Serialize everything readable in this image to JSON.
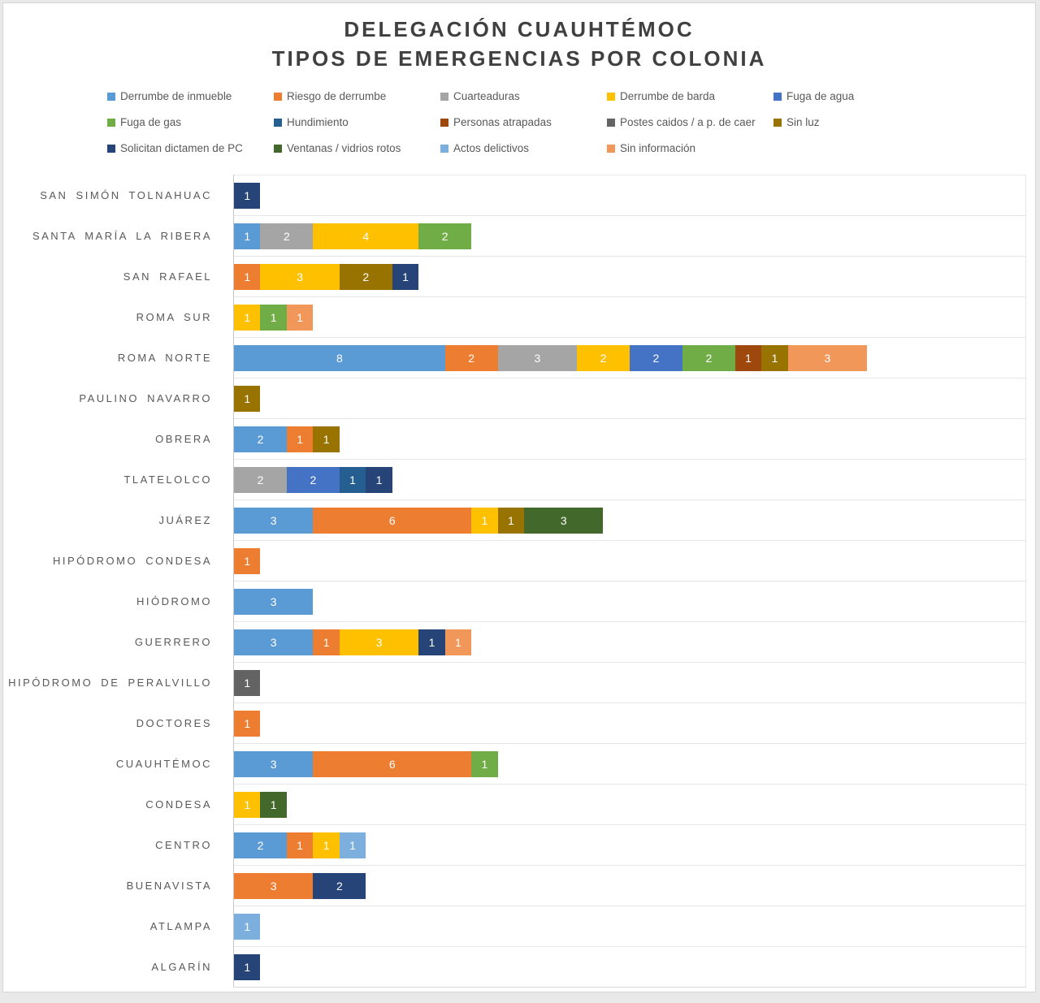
{
  "title": {
    "line1": "DELEGACIÓN CUAUHTÉMOC",
    "line2": "TIPOS DE EMERGENCIAS POR COLONIA"
  },
  "chart_data": {
    "type": "bar",
    "orientation": "horizontal",
    "stacked": true,
    "title": "DELEGACIÓN CUAUHTÉMOC — TIPOS DE EMERGENCIAS POR COLONIA",
    "legend_position": "top",
    "grid": "category-separators-only",
    "x_axis": {
      "min": 0,
      "max": 30,
      "tick_labels_visible": false
    },
    "value_labels": "inside-center-white",
    "series": [
      {
        "name": "Derrumbe de inmueble",
        "color": "#5B9BD5"
      },
      {
        "name": "Riesgo de derrumbe",
        "color": "#ED7D31"
      },
      {
        "name": "Cuarteaduras",
        "color": "#A5A5A5"
      },
      {
        "name": "Derrumbe de barda",
        "color": "#FFC000"
      },
      {
        "name": "Fuga de agua",
        "color": "#4472C4"
      },
      {
        "name": "Fuga de gas",
        "color": "#70AD47"
      },
      {
        "name": "Hundimiento",
        "color": "#255E91"
      },
      {
        "name": "Personas atrapadas",
        "color": "#9E480E"
      },
      {
        "name": "Postes caidos / a p. de caer",
        "color": "#636363"
      },
      {
        "name": "Sin luz",
        "color": "#997300"
      },
      {
        "name": "Solicitan dictamen de PC",
        "color": "#264478"
      },
      {
        "name": "Ventanas / vidrios rotos",
        "color": "#43682B"
      },
      {
        "name": "Actos delictivos",
        "color": "#7CAFDD"
      },
      {
        "name": "Sin información",
        "color": "#F1975A"
      }
    ],
    "categories": [
      "SAN SIMÓN TOLNAHUAC",
      "SANTA MARÍA LA RIBERA",
      "SAN RAFAEL",
      "ROMA SUR",
      "ROMA NORTE",
      "PAULINO NAVARRO",
      "OBRERA",
      "TLATELOLCO",
      "JUÁREZ",
      "HIPÓDROMO CONDESA",
      "HIÓDROMO",
      "GUERRERO",
      "EX HIPÓDROMO DE PERALVILLO",
      "DOCTORES",
      "CUAUHTÉMOC",
      "CONDESA",
      "CENTRO",
      "BUENAVISTA",
      "ATLAMPA",
      "ALGARÍN"
    ],
    "rows": [
      {
        "category": "SAN SIMÓN TOLNAHUAC",
        "segments": [
          {
            "series": "Solicitan dictamen de PC",
            "value": 1
          }
        ]
      },
      {
        "category": "SANTA MARÍA LA RIBERA",
        "segments": [
          {
            "series": "Derrumbe de inmueble",
            "value": 1
          },
          {
            "series": "Cuarteaduras",
            "value": 2
          },
          {
            "series": "Derrumbe de barda",
            "value": 4
          },
          {
            "series": "Fuga de gas",
            "value": 2
          }
        ]
      },
      {
        "category": "SAN RAFAEL",
        "segments": [
          {
            "series": "Riesgo de derrumbe",
            "value": 1
          },
          {
            "series": "Derrumbe de barda",
            "value": 3
          },
          {
            "series": "Sin luz",
            "value": 2
          },
          {
            "series": "Solicitan dictamen de PC",
            "value": 1
          }
        ]
      },
      {
        "category": "ROMA SUR",
        "segments": [
          {
            "series": "Derrumbe de barda",
            "value": 1
          },
          {
            "series": "Fuga de gas",
            "value": 1
          },
          {
            "series": "Sin información",
            "value": 1
          }
        ]
      },
      {
        "category": "ROMA NORTE",
        "segments": [
          {
            "series": "Derrumbe de inmueble",
            "value": 8
          },
          {
            "series": "Riesgo de derrumbe",
            "value": 2
          },
          {
            "series": "Cuarteaduras",
            "value": 3
          },
          {
            "series": "Derrumbe de barda",
            "value": 2
          },
          {
            "series": "Fuga de agua",
            "value": 2
          },
          {
            "series": "Fuga de gas",
            "value": 2
          },
          {
            "series": "Personas atrapadas",
            "value": 1
          },
          {
            "series": "Sin luz",
            "value": 1
          },
          {
            "series": "Sin información",
            "value": 3
          }
        ]
      },
      {
        "category": "PAULINO NAVARRO",
        "segments": [
          {
            "series": "Sin luz",
            "value": 1
          }
        ]
      },
      {
        "category": "OBRERA",
        "segments": [
          {
            "series": "Derrumbe de inmueble",
            "value": 2
          },
          {
            "series": "Riesgo de derrumbe",
            "value": 1
          },
          {
            "series": "Sin luz",
            "value": 1
          }
        ]
      },
      {
        "category": "TLATELOLCO",
        "segments": [
          {
            "series": "Cuarteaduras",
            "value": 2
          },
          {
            "series": "Fuga de agua",
            "value": 2
          },
          {
            "series": "Hundimiento",
            "value": 1
          },
          {
            "series": "Solicitan dictamen de PC",
            "value": 1
          }
        ]
      },
      {
        "category": "JUÁREZ",
        "segments": [
          {
            "series": "Derrumbe de inmueble",
            "value": 3
          },
          {
            "series": "Riesgo de derrumbe",
            "value": 6
          },
          {
            "series": "Derrumbe de barda",
            "value": 1
          },
          {
            "series": "Sin luz",
            "value": 1
          },
          {
            "series": "Ventanas / vidrios rotos",
            "value": 3
          }
        ]
      },
      {
        "category": "HIPÓDROMO CONDESA",
        "segments": [
          {
            "series": "Riesgo de derrumbe",
            "value": 1
          }
        ]
      },
      {
        "category": "HIÓDROMO",
        "segments": [
          {
            "series": "Derrumbe de inmueble",
            "value": 3
          }
        ]
      },
      {
        "category": "GUERRERO",
        "segments": [
          {
            "series": "Derrumbe de inmueble",
            "value": 3
          },
          {
            "series": "Riesgo de derrumbe",
            "value": 1
          },
          {
            "series": "Derrumbe de barda",
            "value": 3
          },
          {
            "series": "Solicitan dictamen de PC",
            "value": 1
          },
          {
            "series": "Sin información",
            "value": 1
          }
        ]
      },
      {
        "category": "EX HIPÓDROMO DE PERALVILLO",
        "segments": [
          {
            "series": "Postes caidos / a p. de caer",
            "value": 1
          }
        ]
      },
      {
        "category": "DOCTORES",
        "segments": [
          {
            "series": "Riesgo de derrumbe",
            "value": 1
          }
        ]
      },
      {
        "category": "CUAUHTÉMOC",
        "segments": [
          {
            "series": "Derrumbe de inmueble",
            "value": 3
          },
          {
            "series": "Riesgo de derrumbe",
            "value": 6
          },
          {
            "series": "Fuga de gas",
            "value": 1
          }
        ]
      },
      {
        "category": "CONDESA",
        "segments": [
          {
            "series": "Derrumbe de barda",
            "value": 1
          },
          {
            "series": "Ventanas / vidrios rotos",
            "value": 1
          }
        ]
      },
      {
        "category": "CENTRO",
        "segments": [
          {
            "series": "Derrumbe de inmueble",
            "value": 2
          },
          {
            "series": "Riesgo de derrumbe",
            "value": 1
          },
          {
            "series": "Derrumbe de barda",
            "value": 1
          },
          {
            "series": "Actos delictivos",
            "value": 1
          }
        ]
      },
      {
        "category": "BUENAVISTA",
        "segments": [
          {
            "series": "Riesgo de derrumbe",
            "value": 3
          },
          {
            "series": "Solicitan dictamen de PC",
            "value": 2
          }
        ]
      },
      {
        "category": "ATLAMPA",
        "segments": [
          {
            "series": "Actos delictivos",
            "value": 1
          }
        ]
      },
      {
        "category": "ALGARÍN",
        "segments": [
          {
            "series": "Solicitan dictamen de PC",
            "value": 1
          }
        ]
      }
    ]
  }
}
